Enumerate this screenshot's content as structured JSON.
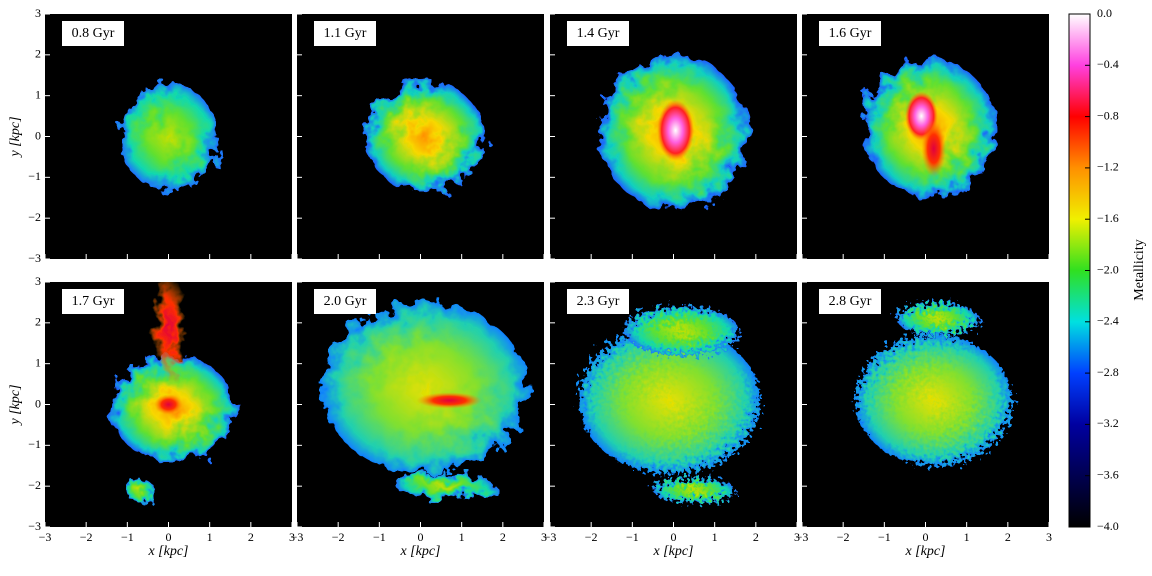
{
  "chart_data": {
    "type": "heatmap",
    "panels": [
      "0.8 Gyr",
      "1.1 Gyr",
      "1.4 Gyr",
      "1.6 Gyr",
      "1.7 Gyr",
      "2.0 Gyr",
      "2.3 Gyr",
      "2.8 Gyr"
    ],
    "xlabel": "x [kpc]",
    "ylabel": "y [kpc]",
    "xlim": [
      -3,
      3
    ],
    "ylim": [
      -3,
      3
    ],
    "xticks": [
      {
        "value": -3,
        "label": "−3"
      },
      {
        "value": -2,
        "label": "−2"
      },
      {
        "value": -1,
        "label": "−1"
      },
      0,
      1,
      2,
      3
    ],
    "yticks": [
      {
        "value": -3,
        "label": "−3"
      },
      {
        "value": -2,
        "label": "−2"
      },
      {
        "value": -1,
        "label": "−1"
      },
      0,
      1,
      2,
      3
    ],
    "colorbar": {
      "label": "Metallicity",
      "lim": [
        -4,
        0
      ],
      "ticks": [
        {
          "value": 0,
          "label": "0.0"
        },
        {
          "value": -0.4,
          "label": "−0.4"
        },
        {
          "value": -0.8,
          "label": "−0.8"
        },
        {
          "value": -1.2,
          "label": "−1.2"
        },
        {
          "value": -1.6,
          "label": "−1.6"
        },
        {
          "value": -2.0,
          "label": "−2.0"
        },
        {
          "value": -2.4,
          "label": "−2.4"
        },
        {
          "value": -2.8,
          "label": "−2.8"
        },
        {
          "value": -3.2,
          "label": "−3.2"
        },
        {
          "value": -3.6,
          "label": "−3.6"
        },
        {
          "value": -4.0,
          "label": "−4.0"
        }
      ]
    }
  }
}
